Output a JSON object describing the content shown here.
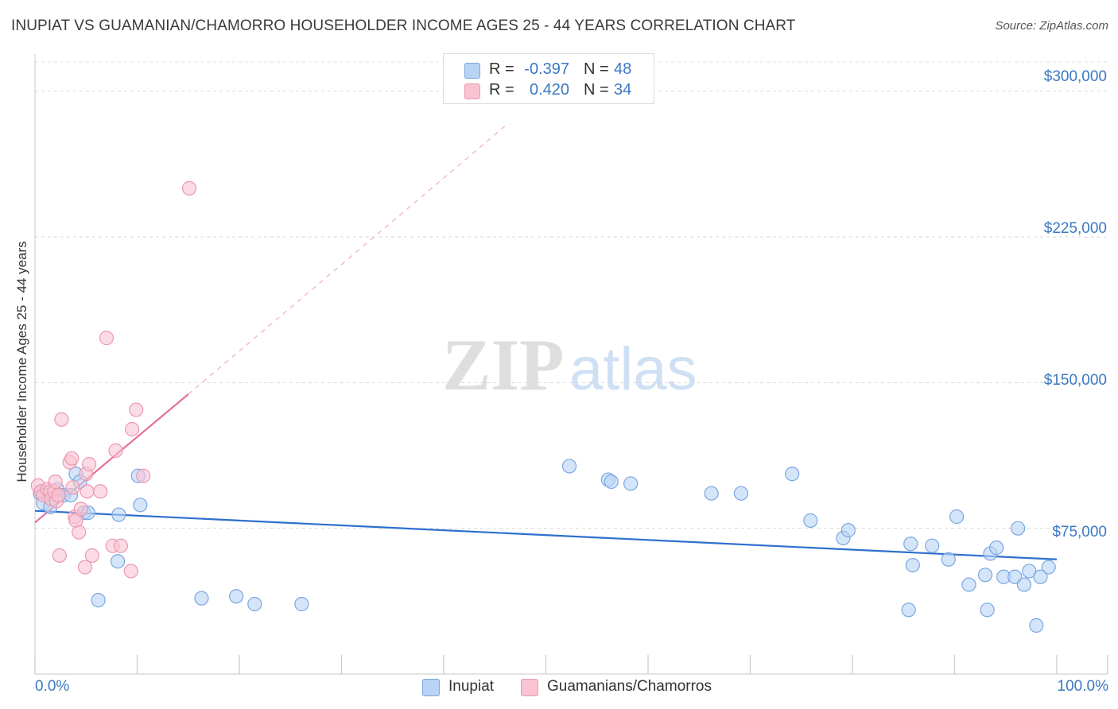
{
  "title": "INUPIAT VS GUAMANIAN/CHAMORRO HOUSEHOLDER INCOME AGES 25 - 44 YEARS CORRELATION CHART",
  "source": "Source: ZipAtlas.com",
  "watermark": {
    "zip": "ZIP",
    "atlas": "atlas"
  },
  "colors": {
    "inupiat_fill": "#b9d3f5",
    "inupiat_line": "#2e6fce",
    "guam_fill": "#f9c3d2",
    "guam_line": "#e4709a",
    "axis_text": "#3b78c4"
  },
  "stats": [
    {
      "series": "Inupiat",
      "r_label": "R =",
      "r_value": "-0.397",
      "n_label": "N =",
      "n_value": "48"
    },
    {
      "series": "Guamanians/Chamorros",
      "r_label": "R =",
      "r_value": "0.420",
      "n_label": "N =",
      "n_value": "34"
    }
  ],
  "legend": [
    {
      "label": "Inupiat"
    },
    {
      "label": "Guamanians/Chamorros"
    }
  ],
  "chart_data": {
    "type": "scatter",
    "title": "INUPIAT VS GUAMANIAN/CHAMORRO HOUSEHOLDER INCOME AGES 25 - 44 YEARS CORRELATION CHART",
    "xlabel": "",
    "ylabel": "Householder Income Ages 25 - 44 years",
    "xlim": [
      0,
      100
    ],
    "ylim": [
      0,
      315000
    ],
    "x_tick_labels": [
      "0.0%",
      "100.0%"
    ],
    "y_ticks": [
      {
        "value": 300000,
        "label": "$300,000"
      },
      {
        "value": 225000,
        "label": "$225,000"
      },
      {
        "value": 150000,
        "label": "$150,000"
      },
      {
        "value": 75000,
        "label": "$75,000"
      }
    ],
    "grid": true,
    "legend_position": "bottom-center",
    "series": [
      {
        "name": "Inupiat",
        "trend": {
          "x0": 0,
          "y0": 84000,
          "x1": 100,
          "y1": 59000
        },
        "points": [
          [
            0.5,
            93000
          ],
          [
            0.8,
            88000
          ],
          [
            1.5,
            86000
          ],
          [
            2.2,
            95000
          ],
          [
            2.8,
            92000
          ],
          [
            3.5,
            92000
          ],
          [
            4.0,
            103000
          ],
          [
            4.4,
            99000
          ],
          [
            4.8,
            83000
          ],
          [
            5.2,
            83000
          ],
          [
            6.2,
            38000
          ],
          [
            8.1,
            58000
          ],
          [
            8.2,
            82000
          ],
          [
            10.1,
            102000
          ],
          [
            10.3,
            87000
          ],
          [
            16.3,
            39000
          ],
          [
            19.7,
            40000
          ],
          [
            21.5,
            36000
          ],
          [
            26.1,
            36000
          ],
          [
            52.3,
            107000
          ],
          [
            56.1,
            100000
          ],
          [
            56.4,
            99000
          ],
          [
            58.3,
            98000
          ],
          [
            66.2,
            93000
          ],
          [
            69.1,
            93000
          ],
          [
            74.1,
            103000
          ],
          [
            75.9,
            79000
          ],
          [
            79.1,
            70000
          ],
          [
            79.6,
            74000
          ],
          [
            85.5,
            33000
          ],
          [
            85.7,
            67000
          ],
          [
            85.9,
            56000
          ],
          [
            87.8,
            66000
          ],
          [
            89.4,
            59000
          ],
          [
            90.2,
            81000
          ],
          [
            91.4,
            46000
          ],
          [
            93.0,
            51000
          ],
          [
            93.2,
            33000
          ],
          [
            93.5,
            62000
          ],
          [
            94.1,
            65000
          ],
          [
            94.8,
            50000
          ],
          [
            95.9,
            50000
          ],
          [
            96.2,
            75000
          ],
          [
            96.8,
            46000
          ],
          [
            97.3,
            53000
          ],
          [
            98.0,
            25000
          ],
          [
            99.2,
            55000
          ],
          [
            98.4,
            50000
          ]
        ]
      },
      {
        "name": "Guamanians/Chamorros",
        "trend": {
          "x0": 0,
          "y0": 78000,
          "x1": 15,
          "y1": 144000
        },
        "trend_extension": {
          "x0": 15,
          "y0": 144000,
          "x1": 46,
          "y1": 282000
        },
        "points": [
          [
            0.3,
            97000
          ],
          [
            0.6,
            94000
          ],
          [
            0.8,
            92000
          ],
          [
            1.2,
            95000
          ],
          [
            1.5,
            94000
          ],
          [
            1.6,
            90000
          ],
          [
            1.9,
            94000
          ],
          [
            2.0,
            99000
          ],
          [
            2.1,
            89000
          ],
          [
            2.3,
            92000
          ],
          [
            2.4,
            61000
          ],
          [
            2.6,
            131000
          ],
          [
            3.4,
            109000
          ],
          [
            3.6,
            111000
          ],
          [
            3.7,
            96000
          ],
          [
            3.9,
            81000
          ],
          [
            4.0,
            79000
          ],
          [
            4.3,
            73000
          ],
          [
            4.5,
            85000
          ],
          [
            4.9,
            55000
          ],
          [
            5.0,
            103000
          ],
          [
            5.1,
            94000
          ],
          [
            5.3,
            108000
          ],
          [
            5.6,
            61000
          ],
          [
            6.4,
            94000
          ],
          [
            7.0,
            173000
          ],
          [
            7.6,
            66000
          ],
          [
            7.9,
            115000
          ],
          [
            8.4,
            66000
          ],
          [
            9.4,
            53000
          ],
          [
            9.5,
            126000
          ],
          [
            9.9,
            136000
          ],
          [
            10.6,
            102000
          ],
          [
            15.1,
            250000
          ]
        ]
      }
    ]
  }
}
